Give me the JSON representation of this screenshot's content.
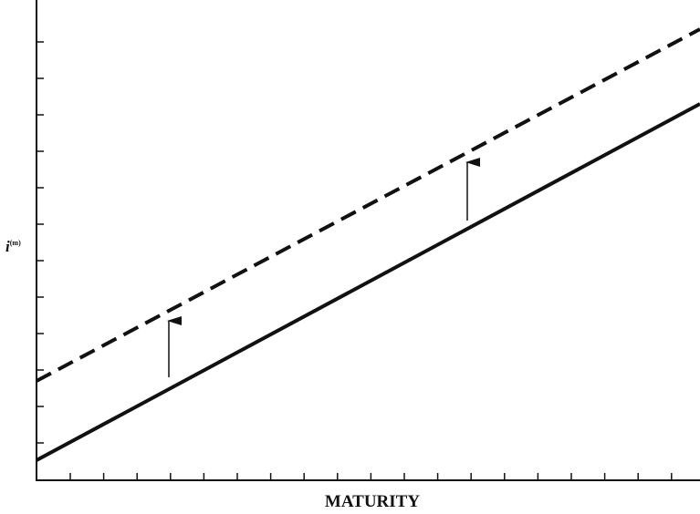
{
  "axes": {
    "y_label": {
      "base": "i",
      "superscript": "(m)"
    },
    "x_label": "MATURITY"
  }
}
